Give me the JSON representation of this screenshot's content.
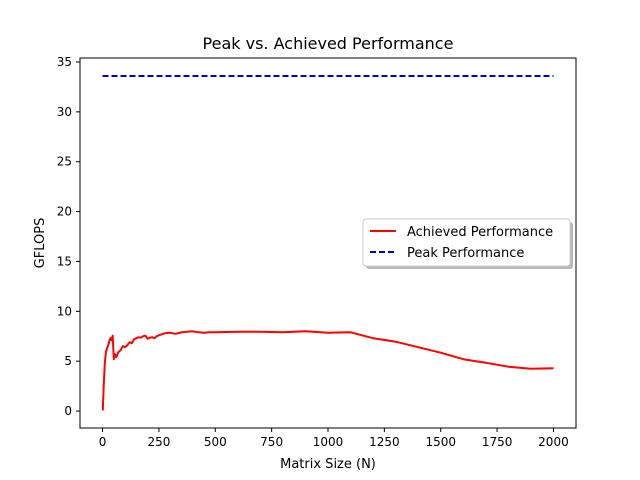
{
  "chart_data": {
    "type": "line",
    "title": "Peak vs. Achieved Performance",
    "xlabel": "Matrix Size (N)",
    "ylabel": "GFLOPS",
    "xlim": [
      -100,
      2100
    ],
    "ylim": [
      -1.7,
      35.4
    ],
    "xticks": [
      0,
      250,
      500,
      750,
      1000,
      1250,
      1500,
      1750,
      2000
    ],
    "xtick_labels": [
      "0",
      "250",
      "500",
      "750",
      "1000",
      "1250",
      "1500",
      "1750",
      "2000"
    ],
    "yticks": [
      0,
      5,
      10,
      15,
      20,
      25,
      30,
      35
    ],
    "ytick_labels": [
      "0",
      "5",
      "10",
      "15",
      "20",
      "25",
      "30",
      "35"
    ],
    "grid": false,
    "legend": "center-right",
    "series": [
      {
        "name": "Achieved Performance",
        "color": "#ff0000",
        "linestyle": "solid",
        "x": [
          1,
          5,
          10,
          15,
          20,
          25,
          30,
          35,
          40,
          45,
          50,
          55,
          60,
          65,
          70,
          80,
          90,
          100,
          110,
          120,
          130,
          140,
          150,
          160,
          170,
          180,
          190,
          200,
          210,
          220,
          230,
          240,
          250,
          275,
          300,
          325,
          350,
          375,
          400,
          425,
          450,
          475,
          500,
          600,
          700,
          800,
          900,
          1000,
          1100,
          1200,
          1300,
          1400,
          1500,
          1600,
          1700,
          1800,
          1900,
          2000
        ],
        "y": [
          0.05,
          2.5,
          4.8,
          5.9,
          6.3,
          6.6,
          7.0,
          7.3,
          7.1,
          7.55,
          5.2,
          5.7,
          5.4,
          5.6,
          5.9,
          6.1,
          6.5,
          6.4,
          6.6,
          6.9,
          6.8,
          7.2,
          7.3,
          7.4,
          7.35,
          7.5,
          7.55,
          7.25,
          7.35,
          7.4,
          7.3,
          7.5,
          7.6,
          7.8,
          7.85,
          7.75,
          7.9,
          7.95,
          8.0,
          7.9,
          7.85,
          7.9,
          7.9,
          7.95,
          7.95,
          7.9,
          8.0,
          7.85,
          7.9,
          7.3,
          6.95,
          6.4,
          5.85,
          5.2,
          4.85,
          4.45,
          4.25,
          4.3
        ]
      },
      {
        "name": "Peak Performance",
        "color": "#0000cc",
        "linestyle": "dashed",
        "x": [
          0,
          2000
        ],
        "y": [
          33.6,
          33.6
        ]
      }
    ]
  }
}
